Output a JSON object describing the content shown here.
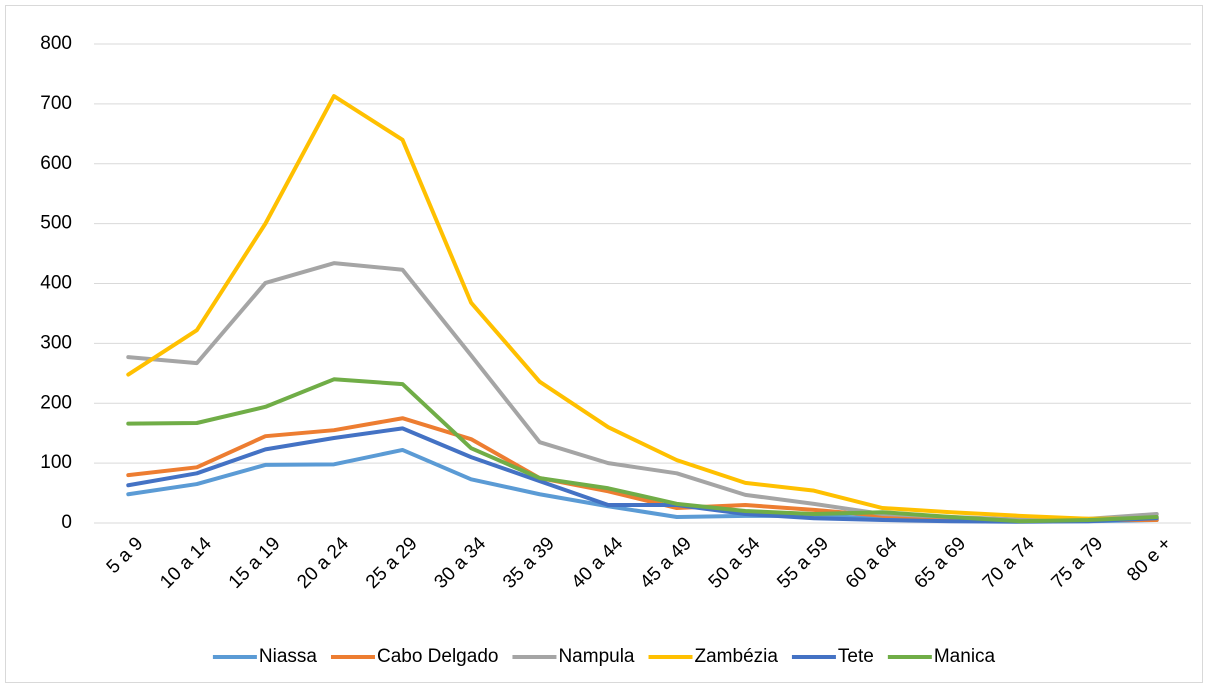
{
  "chart_data": {
    "type": "line",
    "categories": [
      "5 a 9",
      "10 a 14",
      "15 a 19",
      "20 a 24",
      "25 a 29",
      "30 a 34",
      "35 a 39",
      "40 a 44",
      "45 a 49",
      "50 a 54",
      "55 a 59",
      "60 a 64",
      "65 a 69",
      "70 a 74",
      "75 a 79",
      "80 e +"
    ],
    "series": [
      {
        "name": "Niassa",
        "color": "#5b9bd5",
        "values": [
          48,
          65,
          97,
          98,
          122,
          73,
          48,
          28,
          10,
          12,
          12,
          8,
          5,
          3,
          3,
          5
        ]
      },
      {
        "name": "Cabo Delgado",
        "color": "#ed7d31",
        "values": [
          80,
          93,
          145,
          155,
          175,
          140,
          75,
          53,
          25,
          30,
          22,
          12,
          8,
          5,
          5,
          5
        ]
      },
      {
        "name": "Nampula",
        "color": "#a5a5a5",
        "values": [
          277,
          267,
          401,
          434,
          423,
          280,
          135,
          100,
          83,
          47,
          32,
          15,
          10,
          6,
          7,
          15
        ]
      },
      {
        "name": "Zambézia",
        "color": "#ffc000",
        "values": [
          248,
          322,
          500,
          713,
          640,
          368,
          236,
          160,
          105,
          67,
          54,
          25,
          18,
          12,
          7,
          8
        ]
      },
      {
        "name": "Tete",
        "color": "#4472c4",
        "values": [
          63,
          83,
          123,
          142,
          158,
          110,
          70,
          30,
          30,
          15,
          8,
          5,
          3,
          2,
          3,
          8
        ]
      },
      {
        "name": "Manica",
        "color": "#70ad47",
        "values": [
          166,
          167,
          194,
          240,
          232,
          125,
          75,
          58,
          32,
          20,
          15,
          18,
          10,
          3,
          5,
          10
        ]
      }
    ],
    "ylim": [
      0,
      800
    ],
    "yticks": [
      0,
      100,
      200,
      300,
      400,
      500,
      600,
      700,
      800
    ],
    "grid": true,
    "legend": "bottom"
  }
}
